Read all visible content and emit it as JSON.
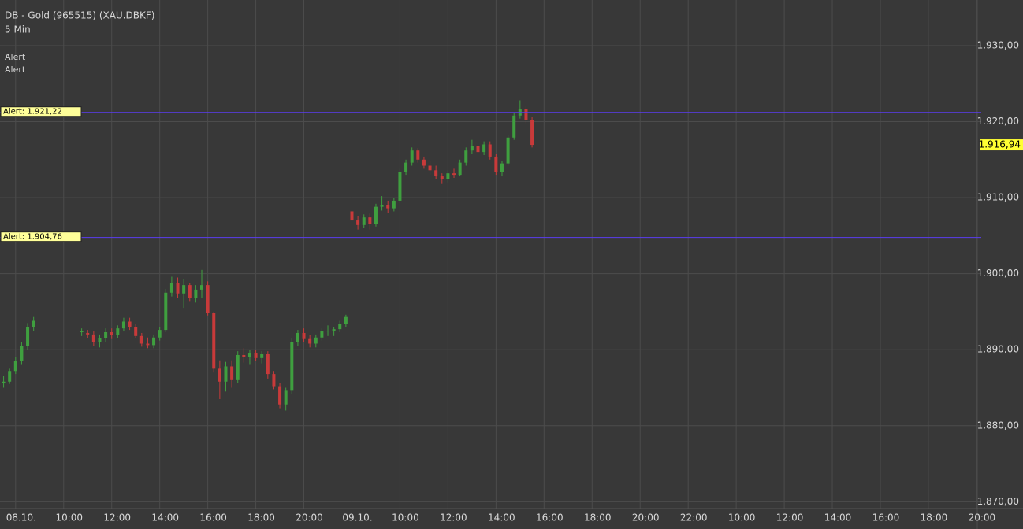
{
  "chart_data": {
    "type": "candlestick",
    "title": "DB - Gold (965515) (XAU.DBKF)",
    "subtitle": "5 Min",
    "legend": [
      "Alert",
      "Alert"
    ],
    "up_color": "#3f9f3f",
    "down_color": "#c83a3a",
    "alert_color": "#5a3cf0",
    "grid": true,
    "xlim": [
      -0.65,
      40.2
    ],
    "ylim": [
      1869,
      1936
    ],
    "xticks": [
      {
        "value": 0,
        "label": "08.10."
      },
      {
        "value": 2,
        "label": "10:00"
      },
      {
        "value": 4,
        "label": "12:00"
      },
      {
        "value": 6,
        "label": "14:00"
      },
      {
        "value": 8,
        "label": "16:00"
      },
      {
        "value": 10,
        "label": "18:00"
      },
      {
        "value": 12,
        "label": "20:00"
      },
      {
        "value": 14,
        "label": "09.10."
      },
      {
        "value": 16,
        "label": "10:00"
      },
      {
        "value": 18,
        "label": "12:00"
      },
      {
        "value": 20,
        "label": "14:00"
      },
      {
        "value": 22,
        "label": "16:00"
      },
      {
        "value": 24,
        "label": "18:00"
      },
      {
        "value": 26,
        "label": "20:00"
      },
      {
        "value": 28,
        "label": "22:00"
      },
      {
        "value": 30,
        "label": "10:00"
      },
      {
        "value": 32,
        "label": "12:00"
      },
      {
        "value": 34,
        "label": "14:00"
      },
      {
        "value": 36,
        "label": "16:00"
      },
      {
        "value": 38,
        "label": "18:00"
      },
      {
        "value": 40,
        "label": "20:00"
      }
    ],
    "yticks": [
      {
        "value": 1870,
        "label": "1.870,00"
      },
      {
        "value": 1880,
        "label": "1.880,00"
      },
      {
        "value": 1890,
        "label": "1.890,00"
      },
      {
        "value": 1900,
        "label": "1.900,00"
      },
      {
        "value": 1910,
        "label": "1.910,00"
      },
      {
        "value": 1920,
        "label": "1.920,00"
      },
      {
        "value": 1930,
        "label": "1.930,00"
      }
    ],
    "alerts": [
      {
        "value": 1921.22,
        "label": "Alert: 1.921,22"
      },
      {
        "value": 1904.76,
        "label": "Alert: 1.904,76"
      }
    ],
    "last_price": {
      "value": 1916.94,
      "label": "1.916,94"
    },
    "x": [
      -0.5,
      -0.25,
      0,
      0.25,
      0.5,
      0.75,
      2.75,
      3,
      3.25,
      3.5,
      3.75,
      4,
      4.25,
      4.5,
      4.75,
      5,
      5.25,
      5.5,
      5.75,
      6,
      6.25,
      6.5,
      6.75,
      7,
      7.25,
      7.5,
      7.75,
      8,
      8.25,
      8.5,
      8.75,
      9,
      9.25,
      9.5,
      9.75,
      10,
      10.25,
      10.5,
      10.75,
      11,
      11.25,
      11.5,
      11.75,
      12,
      12.25,
      12.5,
      12.75,
      13,
      13.25,
      13.5,
      13.75,
      14,
      14.25,
      14.5,
      14.75,
      15,
      15.25,
      15.5,
      15.75,
      16,
      16.25,
      16.5,
      16.75,
      17,
      17.25,
      17.5,
      17.75,
      18,
      18.25,
      18.5,
      18.75,
      19,
      19.25,
      19.5,
      19.75,
      20,
      20.25,
      20.5,
      20.75,
      21,
      21.25,
      21.5
    ],
    "open": [
      1885.6,
      1885.8,
      1887.2,
      1888.5,
      1890.5,
      1893,
      1892.3,
      1892.2,
      1892,
      1891,
      1891.5,
      1892.3,
      1891.9,
      1892.8,
      1893.7,
      1893,
      1891.8,
      1890.8,
      1890.6,
      1891.6,
      1892.6,
      1897.5,
      1898.8,
      1897.4,
      1898.5,
      1896.8,
      1897.9,
      1898.5,
      1894.8,
      1887.5,
      1885.8,
      1887.8,
      1886,
      1889.3,
      1889,
      1889.5,
      1888.9,
      1889.4,
      1886.8,
      1885.2,
      1882.8,
      1884.6,
      1891,
      1892.2,
      1891.4,
      1890.8,
      1891.6,
      1892.4,
      1892.5,
      1892.7,
      1893.4,
      1908.2,
      1907,
      1906.4,
      1907.4,
      1906.5,
      1908.8,
      1909,
      1908.6,
      1909.6,
      1913.4,
      1914.6,
      1916.2,
      1915,
      1914.2,
      1913.6,
      1912.8,
      1912.4,
      1913.2,
      1913,
      1914.6,
      1916.2,
      1916.8,
      1916,
      1917,
      1915.4,
      1913.4,
      1914.5,
      1917.9,
      1920.8,
      1921.6,
      1920.2
    ],
    "high": [
      1886.5,
      1887.5,
      1889,
      1891,
      1893.5,
      1894.3,
      1892.8,
      1892.6,
      1892.4,
      1892,
      1892.8,
      1892.8,
      1893.2,
      1894.2,
      1894.2,
      1893.4,
      1892.2,
      1891.6,
      1892,
      1893,
      1898,
      1899.6,
      1899.5,
      1899.3,
      1898.8,
      1898.5,
      1900.5,
      1899,
      1895,
      1888.6,
      1888.4,
      1888.6,
      1889.8,
      1890.2,
      1890,
      1890,
      1889.8,
      1889.8,
      1887.2,
      1885.6,
      1885,
      1891.5,
      1892.6,
      1892.8,
      1891.9,
      1892,
      1892.8,
      1893.2,
      1893,
      1893.8,
      1894.6,
      1908.6,
      1907.6,
      1907.8,
      1907.9,
      1909.2,
      1910.2,
      1909.6,
      1910,
      1913.8,
      1915,
      1916.6,
      1916.5,
      1915.4,
      1914.8,
      1914.2,
      1913.2,
      1913.6,
      1913.8,
      1915,
      1916.6,
      1917.6,
      1917.2,
      1917.4,
      1917.4,
      1915.8,
      1914.8,
      1918.2,
      1921.2,
      1922.8,
      1922,
      1920.6
    ],
    "low": [
      1885,
      1885.5,
      1886.8,
      1888,
      1890,
      1892.5,
      1891.8,
      1891.5,
      1890.5,
      1890.3,
      1891,
      1891.4,
      1891.5,
      1892.4,
      1892.6,
      1891.5,
      1890.4,
      1890.2,
      1890.2,
      1891.2,
      1892.3,
      1897,
      1896.8,
      1895.5,
      1896.3,
      1896.2,
      1896.8,
      1894.5,
      1887,
      1883.5,
      1884.5,
      1885,
      1885.6,
      1888.3,
      1888,
      1888.5,
      1888.2,
      1886.2,
      1884.8,
      1882.3,
      1882,
      1884.2,
      1890.5,
      1891,
      1890.3,
      1890.3,
      1891.2,
      1891.8,
      1891.8,
      1892.3,
      1893,
      1906.5,
      1905.8,
      1906,
      1905.8,
      1906.2,
      1908.3,
      1908,
      1908.2,
      1909.3,
      1913,
      1914.2,
      1914.6,
      1913.8,
      1913,
      1912.4,
      1911.8,
      1912,
      1912.6,
      1912.8,
      1914.2,
      1915.8,
      1915.6,
      1915.6,
      1915,
      1913,
      1912.8,
      1914.2,
      1917.6,
      1920.4,
      1919.8,
      1916.6
    ],
    "close": [
      1885.8,
      1887.2,
      1888.5,
      1890.5,
      1893,
      1893.8,
      1892.4,
      1892,
      1891,
      1891.5,
      1892.3,
      1891.9,
      1892.8,
      1893.7,
      1893,
      1891.8,
      1890.8,
      1890.6,
      1891.6,
      1892.6,
      1897.5,
      1898.8,
      1897.4,
      1898.5,
      1896.8,
      1897.9,
      1898.5,
      1894.8,
      1887.5,
      1885.8,
      1887.8,
      1886,
      1889.3,
      1889,
      1889.5,
      1888.9,
      1889.4,
      1886.8,
      1885.2,
      1882.8,
      1884.6,
      1891,
      1892.2,
      1891.4,
      1890.8,
      1891.6,
      1892.4,
      1892.5,
      1892.7,
      1893.4,
      1894.3,
      1907,
      1906.4,
      1907.4,
      1906.5,
      1908.8,
      1909,
      1908.6,
      1909.6,
      1913.4,
      1914.6,
      1916.2,
      1915,
      1914.2,
      1913.6,
      1912.8,
      1912.4,
      1913.2,
      1913,
      1914.6,
      1916.2,
      1916.8,
      1916,
      1917,
      1915.4,
      1913.4,
      1914.5,
      1917.9,
      1920.8,
      1921.6,
      1920.2,
      1916.94
    ]
  }
}
